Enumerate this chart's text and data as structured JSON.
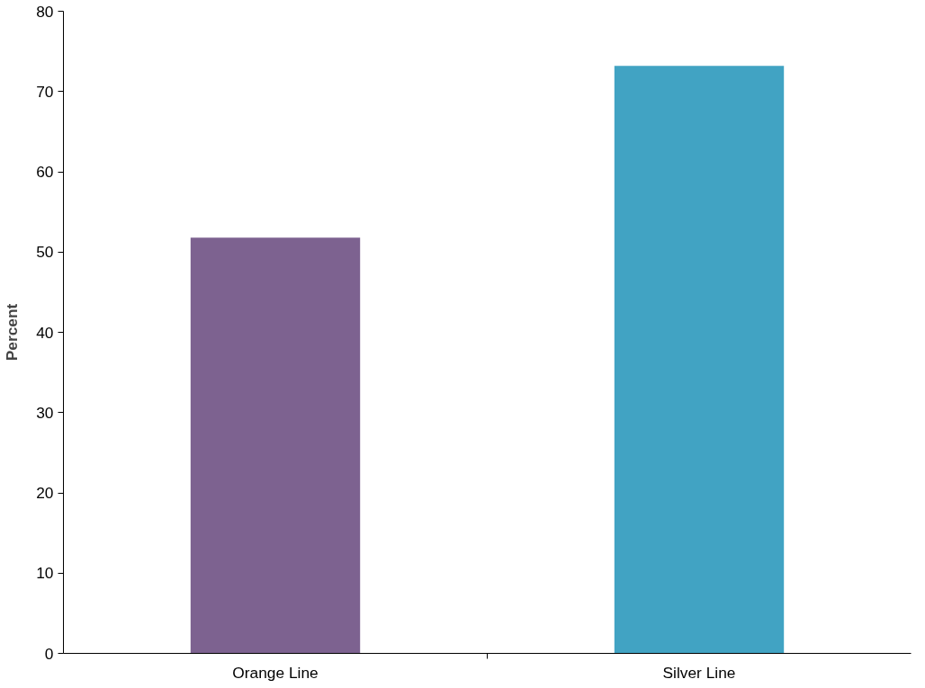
{
  "chart_data": {
    "type": "bar",
    "ylabel": "Percent",
    "categories": [
      "Orange Line",
      "Silver Line"
    ],
    "colors": [
      "#7d6290",
      "#41a3c3"
    ],
    "values": [
      51.8,
      73.2
    ],
    "ylim": [
      0,
      80
    ],
    "yticks": [
      0,
      10,
      20,
      30,
      40,
      50,
      60,
      70,
      80
    ],
    "grid": false
  }
}
